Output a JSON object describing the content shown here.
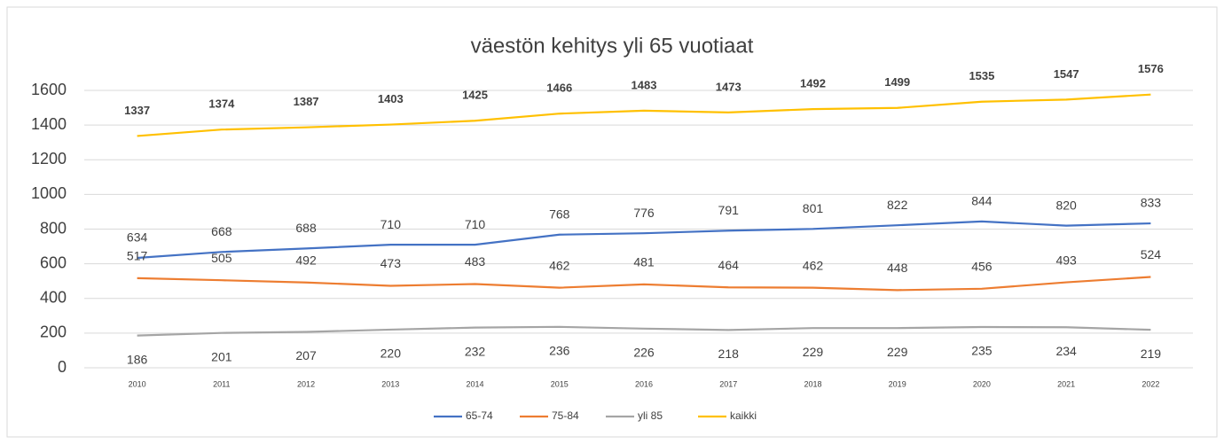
{
  "chart_data": {
    "type": "line",
    "title": "väestön kehitys yli 65 vuotiaat",
    "categories": [
      "2010",
      "2011",
      "2012",
      "2013",
      "2014",
      "2015",
      "2016",
      "2017",
      "2018",
      "2019",
      "2020",
      "2021",
      "2022"
    ],
    "series": [
      {
        "name": "65-74",
        "color": "#4472c4",
        "values": [
          634,
          668,
          688,
          710,
          710,
          768,
          776,
          791,
          801,
          822,
          844,
          820,
          833
        ]
      },
      {
        "name": "75-84",
        "color": "#ed7d31",
        "values": [
          517,
          505,
          492,
          473,
          483,
          462,
          481,
          464,
          462,
          448,
          456,
          493,
          524
        ]
      },
      {
        "name": "yli 85",
        "color": "#a5a5a5",
        "values": [
          186,
          201,
          207,
          220,
          232,
          236,
          226,
          218,
          229,
          229,
          235,
          234,
          219
        ]
      },
      {
        "name": "kaikki",
        "color": "#ffc000",
        "values": [
          1337,
          1374,
          1387,
          1403,
          1425,
          1466,
          1483,
          1473,
          1492,
          1499,
          1535,
          1547,
          1576
        ]
      }
    ],
    "ylim": [
      0,
      1600
    ],
    "yticks": [
      0,
      200,
      400,
      600,
      800,
      1000,
      1200,
      1400,
      1600
    ],
    "grid": true,
    "legend": "bottom"
  }
}
